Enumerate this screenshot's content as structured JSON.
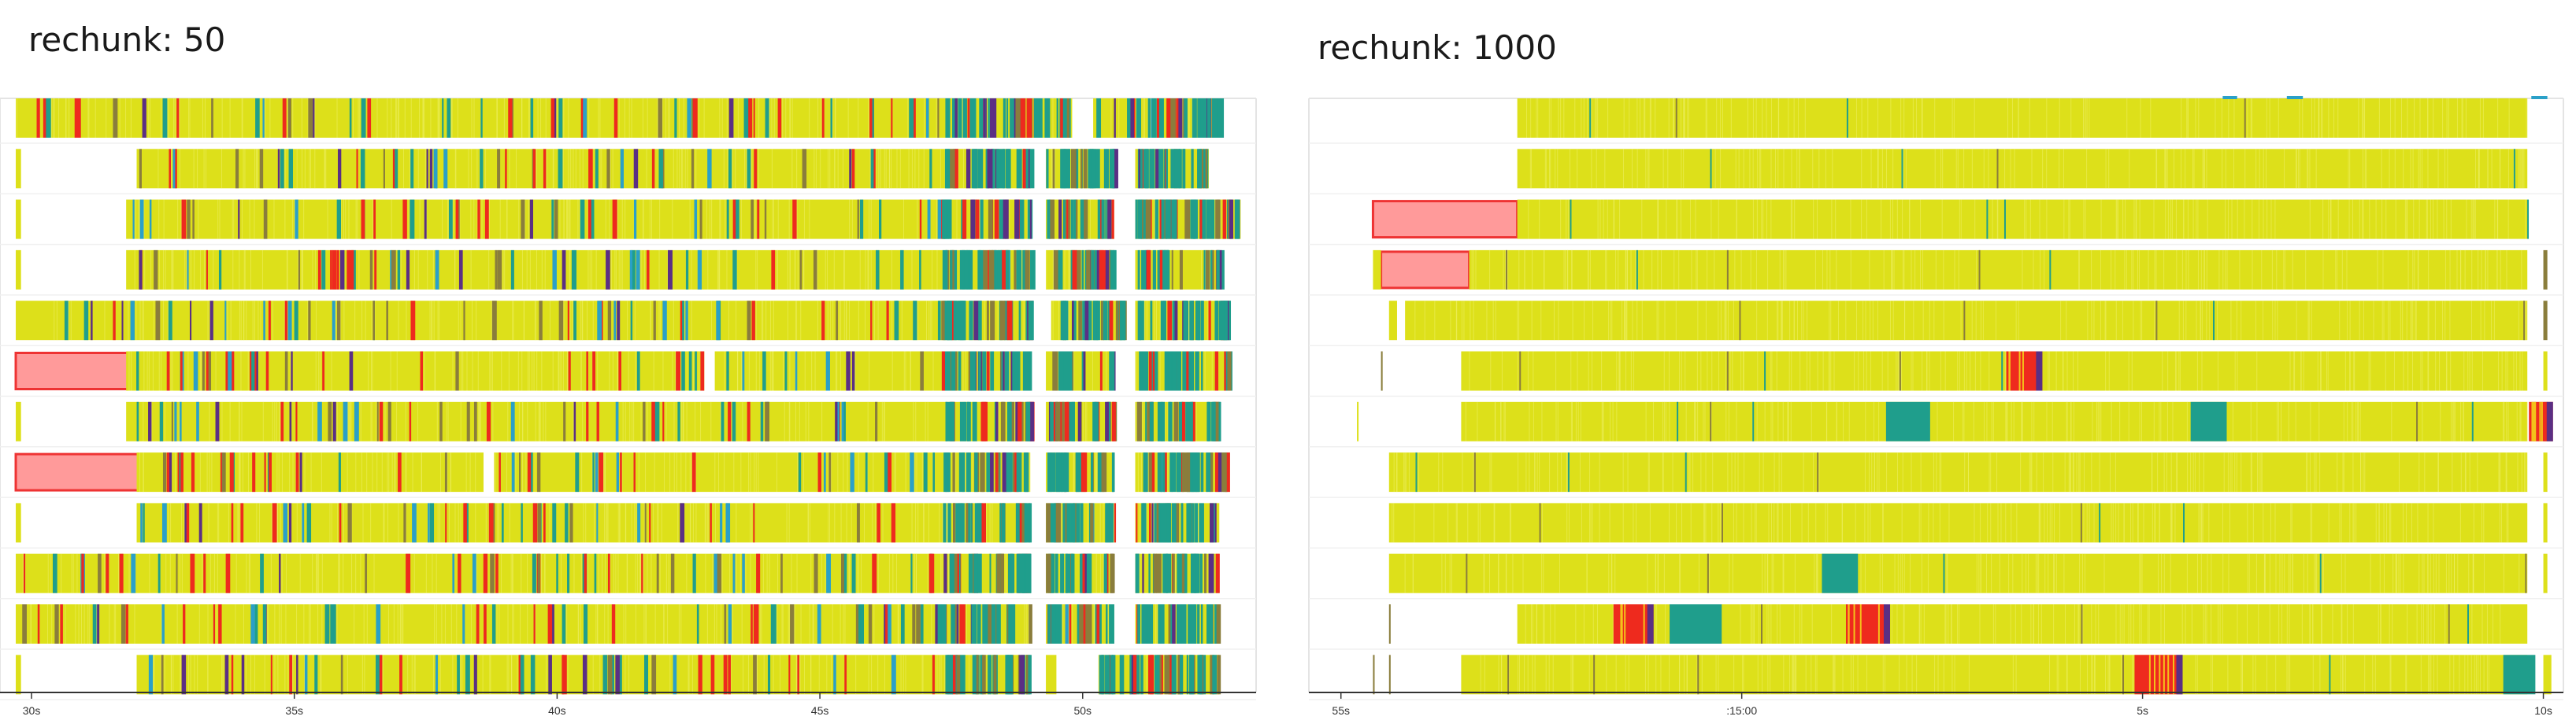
{
  "colors": {
    "task_yellow": "#dde01a",
    "task_red": "#ee2a1e",
    "task_teal": "#1f9e8c",
    "task_olive": "#8a7d3c",
    "task_purple": "#5a2f84",
    "task_blue": "#2aa0c8",
    "idle_pink": "#ff9a9a",
    "idle_pink_border": "#ee3333",
    "gridline": "#e4e4e4",
    "axis": "#333333"
  },
  "chart_data": [
    {
      "type": "gantt",
      "title": "rechunk: 50",
      "x_unit": "seconds",
      "xlim": [
        29.4,
        53.3
      ],
      "ticks": [
        {
          "value": 30,
          "label": "30s"
        },
        {
          "value": 35,
          "label": "35s"
        },
        {
          "value": 40,
          "label": "40s"
        },
        {
          "value": 45,
          "label": "45s"
        },
        {
          "value": 50,
          "label": "50s"
        }
      ],
      "workers": [
        {
          "segments": [
            [
              29.7,
              49.8
            ],
            [
              50.2,
              52.6
            ]
          ],
          "idle": []
        },
        {
          "segments": [
            [
              29.7,
              29.8
            ],
            [
              32.0,
              49.0
            ],
            [
              49.3,
              50.6
            ],
            [
              51.0,
              52.4
            ]
          ],
          "idle": []
        },
        {
          "segments": [
            [
              29.7,
              29.8
            ],
            [
              31.8,
              49.0
            ],
            [
              49.3,
              50.6
            ],
            [
              51.0,
              53.0
            ]
          ],
          "idle": []
        },
        {
          "segments": [
            [
              29.7,
              29.8
            ],
            [
              31.8,
              49.0
            ],
            [
              49.3,
              50.6
            ],
            [
              51.0,
              52.6
            ]
          ],
          "idle": []
        },
        {
          "segments": [
            [
              29.7,
              49.0
            ],
            [
              49.4,
              50.8
            ],
            [
              51.0,
              52.8
            ]
          ],
          "idle": []
        },
        {
          "segments": [
            [
              31.8,
              42.8
            ],
            [
              43.0,
              49.0
            ],
            [
              49.3,
              50.6
            ],
            [
              51.0,
              52.8
            ]
          ],
          "idle": [
            [
              29.7,
              31.9
            ]
          ]
        },
        {
          "segments": [
            [
              29.7,
              29.8
            ],
            [
              31.8,
              49.0
            ],
            [
              49.3,
              50.6
            ],
            [
              51.0,
              52.6
            ]
          ],
          "idle": []
        },
        {
          "segments": [
            [
              32.0,
              38.6
            ],
            [
              38.8,
              49.0
            ],
            [
              49.3,
              50.6
            ],
            [
              51.0,
              52.8
            ]
          ],
          "idle": [
            [
              29.7,
              32.1
            ]
          ]
        },
        {
          "segments": [
            [
              29.7,
              29.8
            ],
            [
              32.0,
              49.0
            ],
            [
              49.3,
              50.6
            ],
            [
              51.0,
              52.6
            ]
          ],
          "idle": []
        },
        {
          "segments": [
            [
              29.7,
              49.0
            ],
            [
              49.3,
              50.6
            ],
            [
              51.0,
              52.6
            ]
          ],
          "idle": []
        },
        {
          "segments": [
            [
              29.7,
              49.0
            ],
            [
              49.3,
              50.6
            ],
            [
              51.0,
              52.6
            ]
          ],
          "idle": []
        },
        {
          "segments": [
            [
              29.7,
              29.8
            ],
            [
              32.0,
              49.0
            ],
            [
              49.3,
              49.5
            ],
            [
              50.3,
              52.6
            ]
          ],
          "idle": []
        }
      ]
    },
    {
      "type": "gantt",
      "title": "rechunk: 1000",
      "x_unit": "seconds",
      "xlim": [
        54.6,
        70.25
      ],
      "ticks": [
        {
          "value": 55.0,
          "label": "55s"
        },
        {
          "value": 60.0,
          "label": ":15:00"
        },
        {
          "value": 65.0,
          "label": "5s"
        },
        {
          "value": 70.0,
          "label": "10s"
        }
      ],
      "workers": [
        {
          "segments": [
            [
              57.2,
              69.8
            ]
          ],
          "idle": []
        },
        {
          "segments": [
            [
              57.2,
              69.8
            ]
          ],
          "idle": []
        },
        {
          "segments": [
            [
              57.2,
              69.8
            ]
          ],
          "idle": [
            [
              55.4,
              57.2
            ]
          ]
        },
        {
          "segments": [
            [
              55.4,
              55.5
            ],
            [
              56.6,
              69.8
            ],
            [
              70.0,
              70.05
            ]
          ],
          "idle": [
            [
              55.5,
              56.6
            ]
          ]
        },
        {
          "segments": [
            [
              55.6,
              55.7
            ],
            [
              55.8,
              69.8
            ],
            [
              70.0,
              70.05
            ]
          ],
          "idle": []
        },
        {
          "segments": [
            [
              55.5,
              55.52
            ],
            [
              56.5,
              69.8
            ],
            [
              70.0,
              70.05
            ]
          ],
          "idle": []
        },
        {
          "segments": [
            [
              55.2,
              55.22
            ],
            [
              56.5,
              69.8
            ],
            [
              70.0,
              70.05
            ]
          ],
          "idle": []
        },
        {
          "segments": [
            [
              55.6,
              69.8
            ],
            [
              70.0,
              70.05
            ]
          ],
          "idle": []
        },
        {
          "segments": [
            [
              55.6,
              69.8
            ],
            [
              70.0,
              70.05
            ]
          ],
          "idle": []
        },
        {
          "segments": [
            [
              55.6,
              69.8
            ],
            [
              70.0,
              70.05
            ]
          ],
          "idle": []
        },
        {
          "segments": [
            [
              55.6,
              55.62
            ],
            [
              57.2,
              69.8
            ]
          ],
          "idle": []
        },
        {
          "segments": [
            [
              55.4,
              55.42
            ],
            [
              55.6,
              55.62
            ],
            [
              56.5,
              69.8
            ],
            [
              70.0,
              70.1
            ]
          ],
          "idle": []
        }
      ]
    }
  ]
}
